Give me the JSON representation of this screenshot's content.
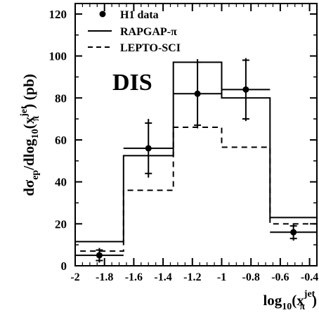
{
  "chart_data": {
    "type": "histogram",
    "title": "",
    "annotation": "DIS",
    "ylabel": {
      "main": "dσ",
      "sub1": "ep",
      "mid": "/dlog",
      "sub2": "10",
      "open": "(x",
      "sup": "jet",
      "sub3": "π",
      "close": ") (pb)"
    },
    "xlabel": {
      "main": "log",
      "sub1": "10",
      "open": "(x",
      "sup": "jet",
      "sub2": "π",
      "close": ")"
    },
    "xlim": [
      -2.0,
      -0.35
    ],
    "ylim": [
      0,
      125
    ],
    "x_ticks": [
      "-2",
      "-1.8",
      "-1.6",
      "-1.4",
      "-1.2",
      "-1",
      "-0.8",
      "-0.6",
      "-0.4"
    ],
    "x_tick_values": [
      -2.0,
      -1.8,
      -1.6,
      -1.4,
      -1.2,
      -1.0,
      -0.8,
      -0.6,
      -0.4
    ],
    "y_ticks": [
      "0",
      "20",
      "40",
      "60",
      "80",
      "100",
      "120"
    ],
    "y_tick_values": [
      0,
      20,
      40,
      60,
      80,
      100,
      120
    ],
    "bin_edges": [
      -2.0,
      -1.67,
      -1.33,
      -1.0,
      -0.67,
      -0.35
    ],
    "series": [
      {
        "name": "H1 data",
        "style": "points",
        "x": [
          -1.835,
          -1.5,
          -1.165,
          -0.835,
          -0.51
        ],
        "y": [
          5,
          56,
          82,
          84,
          16
        ],
        "y_err_stat": [
          2.5,
          12,
          15,
          14,
          3
        ],
        "y_err_tot": [
          3.5,
          14,
          16.5,
          15,
          4
        ]
      },
      {
        "name": "RAPGAP-π",
        "style": "solid",
        "values": [
          11.5,
          52.5,
          97,
          80,
          23
        ]
      },
      {
        "name": "LEPTO-SCI",
        "style": "dashed",
        "values": [
          7,
          36,
          66,
          56.5,
          20
        ]
      }
    ],
    "legend_position": "top-left",
    "grid": false
  }
}
